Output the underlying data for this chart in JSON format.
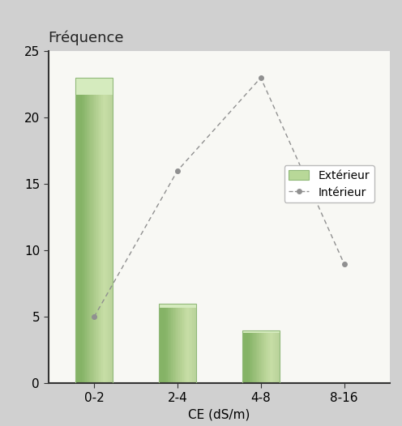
{
  "categories": [
    "0-2",
    "2-4",
    "4-8",
    "8-16"
  ],
  "bar_values": [
    23,
    6,
    4,
    0
  ],
  "line_values": [
    5,
    16,
    23,
    9
  ],
  "bar_color_left": "#8ab870",
  "bar_color_mid": "#b0d090",
  "bar_color_right": "#c8e0a8",
  "bar_color_top": "#d8ecc0",
  "bar_edge_color": "#90b878",
  "line_color": "#909090",
  "line_marker": "o",
  "title": "Fréquence",
  "xlabel": "CE (dS/m)",
  "ylim": [
    0,
    25
  ],
  "yticks": [
    0,
    5,
    10,
    15,
    20,
    25
  ],
  "legend_ext": "Extérieur",
  "legend_int": "Intérieur",
  "outer_bg_color": "#d0d0d0",
  "plot_bg_color": "#f8f8f4",
  "bar_width": 0.45,
  "title_fontsize": 13,
  "axis_fontsize": 11,
  "xlabel_fontsize": 11
}
